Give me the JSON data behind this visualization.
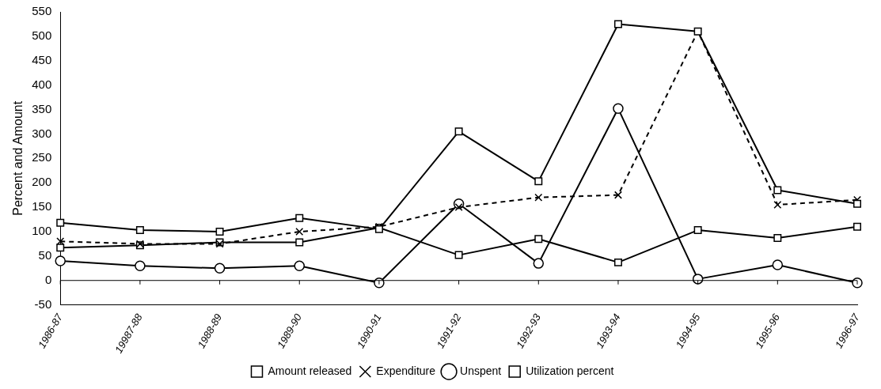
{
  "chart_data": {
    "type": "line",
    "ylabel": "Percent and Amount",
    "categories": [
      "1986-87",
      "19987-88",
      "1988-89",
      "1989-90",
      "1990-91",
      "1991-92",
      "1992-93",
      "1993-94",
      "1994-95",
      "1995-96",
      "1996-97"
    ],
    "series": [
      {
        "name": "Amount released",
        "color": "#000000",
        "marker": "square",
        "line_style": "solid",
        "values": [
          118,
          103,
          100,
          128,
          105,
          305,
          203,
          525,
          510,
          185,
          157
        ]
      },
      {
        "name": "Expenditure",
        "color": "#000000",
        "marker": "cross",
        "line_style": "dashed",
        "values": [
          80,
          75,
          75,
          100,
          110,
          150,
          170,
          175,
          510,
          155,
          165
        ]
      },
      {
        "name": "Unspent",
        "color": "#000000",
        "marker": "circle",
        "line_style": "solid",
        "values": [
          40,
          30,
          25,
          30,
          -5,
          157,
          35,
          352,
          3,
          32,
          -5
        ]
      },
      {
        "name": "Utilization percent",
        "color": "#000000",
        "marker": "square",
        "line_style": "solid",
        "values": [
          67,
          72,
          78,
          78,
          108,
          52,
          85,
          37,
          103,
          87,
          110
        ]
      }
    ],
    "ylim": [
      -50,
      550
    ],
    "yticks": [
      -50,
      0,
      50,
      100,
      150,
      200,
      250,
      300,
      350,
      400,
      450,
      500,
      550
    ],
    "legend": "bottom"
  }
}
